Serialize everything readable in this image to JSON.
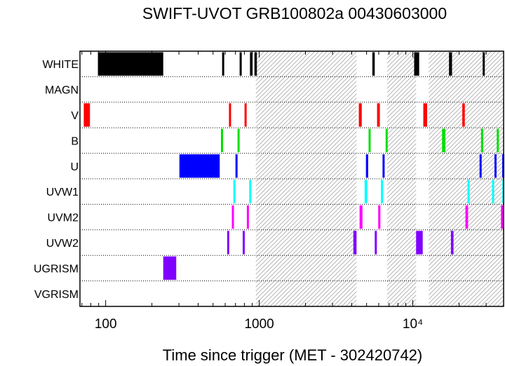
{
  "chart_data": {
    "type": "timeline",
    "title": "SWIFT-UVOT GRB100802a 00430603000",
    "xlabel": "Time since trigger (MET - 302420742)",
    "x_scale": "log",
    "xlim": [
      68,
      39000
    ],
    "x_ticks": [
      {
        "value": 100,
        "label": "100"
      },
      {
        "value": 1000,
        "label": "1000"
      },
      {
        "value": 10000,
        "label": "10⁴"
      }
    ],
    "rows": [
      "WHITE",
      "MAGN",
      "V",
      "B",
      "U",
      "UVW1",
      "UVM2",
      "UVW2",
      "UGRISM",
      "VGRISM"
    ],
    "row_colors": {
      "WHITE": "#000000",
      "MAGN": "#000000",
      "V": "#ff0000",
      "B": "#00e000",
      "U": "#0000ff",
      "UVW1": "#00ffff",
      "UVM2": "#ff00ff",
      "UVW2": "#8000ff",
      "UGRISM": "#8000ff",
      "VGRISM": "#000000"
    },
    "hatched_intervals": [
      [
        950,
        4300
      ],
      [
        6800,
        10500
      ],
      [
        12700,
        39000
      ]
    ],
    "exposures": {
      "WHITE": [
        [
          89,
          237
        ],
        [
          573,
          588
        ],
        [
          745,
          760
        ],
        [
          870,
          905
        ],
        [
          930,
          965
        ],
        [
          5450,
          5650
        ],
        [
          10200,
          11000
        ],
        [
          17200,
          18000
        ],
        [
          28500,
          29200
        ]
      ],
      "MAGN": [],
      "V": [
        [
          72,
          79
        ],
        [
          635,
          655
        ],
        [
          802,
          815
        ],
        [
          4450,
          4650
        ],
        [
          5850,
          6100
        ],
        [
          11700,
          12400
        ],
        [
          21000,
          21800
        ]
      ],
      "B": [
        [
          563,
          580
        ],
        [
          722,
          740
        ],
        [
          5150,
          5300
        ],
        [
          6650,
          6850
        ],
        [
          15500,
          16300
        ],
        [
          27800,
          28500
        ],
        [
          35200,
          36200
        ]
      ],
      "U": [
        [
          302,
          553
        ],
        [
          700,
          718
        ],
        [
          4950,
          5120
        ],
        [
          6350,
          6500
        ],
        [
          27200,
          27900
        ],
        [
          34000,
          35000
        ],
        [
          38200,
          39000
        ]
      ],
      "UVW1": [
        [
          678,
          693
        ],
        [
          860,
          880
        ],
        [
          4850,
          5050
        ],
        [
          6200,
          6400
        ],
        [
          22700,
          23300
        ],
        [
          32800,
          33800
        ],
        [
          38200,
          39000
        ]
      ],
      "UVM2": [
        [
          663,
          683
        ],
        [
          830,
          850
        ],
        [
          4500,
          4700
        ],
        [
          5950,
          6150
        ],
        [
          22000,
          22900
        ],
        [
          37500,
          38500
        ]
      ],
      "UVW2": [
        [
          618,
          633
        ],
        [
          780,
          798
        ],
        [
          4100,
          4300
        ],
        [
          5650,
          5800
        ],
        [
          10500,
          11600
        ],
        [
          17700,
          18400
        ]
      ],
      "UGRISM": [
        [
          237,
          288
        ]
      ],
      "VGRISM": []
    }
  }
}
